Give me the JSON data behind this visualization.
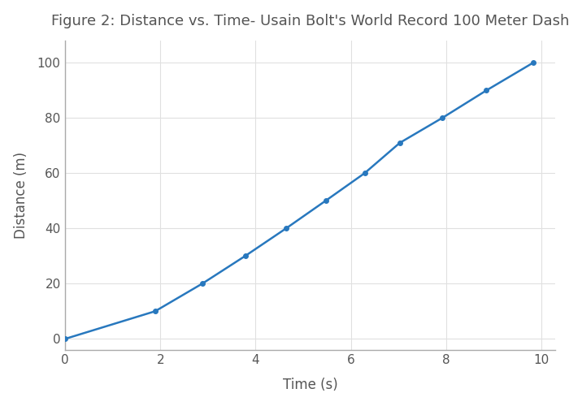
{
  "title": "Figure 2: Distance vs. Time- Usain Bolt's World Record 100 Meter Dash",
  "xlabel": "Time (s)",
  "ylabel": "Distance (m)",
  "time": [
    0,
    1.89,
    2.88,
    3.78,
    4.64,
    5.47,
    6.29,
    7.03,
    7.92,
    8.85,
    9.83
  ],
  "distance": [
    0,
    10,
    20,
    30,
    40,
    50,
    60,
    71,
    80,
    90,
    100
  ],
  "line_color": "#2878be",
  "marker": "o",
  "marker_size": 4,
  "line_width": 1.8,
  "xlim": [
    0,
    10.3
  ],
  "ylim": [
    -4,
    108
  ],
  "xticks": [
    0,
    2,
    4,
    6,
    8,
    10
  ],
  "yticks": [
    0,
    20,
    40,
    60,
    80,
    100
  ],
  "grid_color": "#e0e0e0",
  "bg_color": "#ffffff",
  "title_fontsize": 13,
  "axis_label_fontsize": 12,
  "tick_fontsize": 11,
  "spine_color": "#aaaaaa",
  "text_color": "#555555"
}
